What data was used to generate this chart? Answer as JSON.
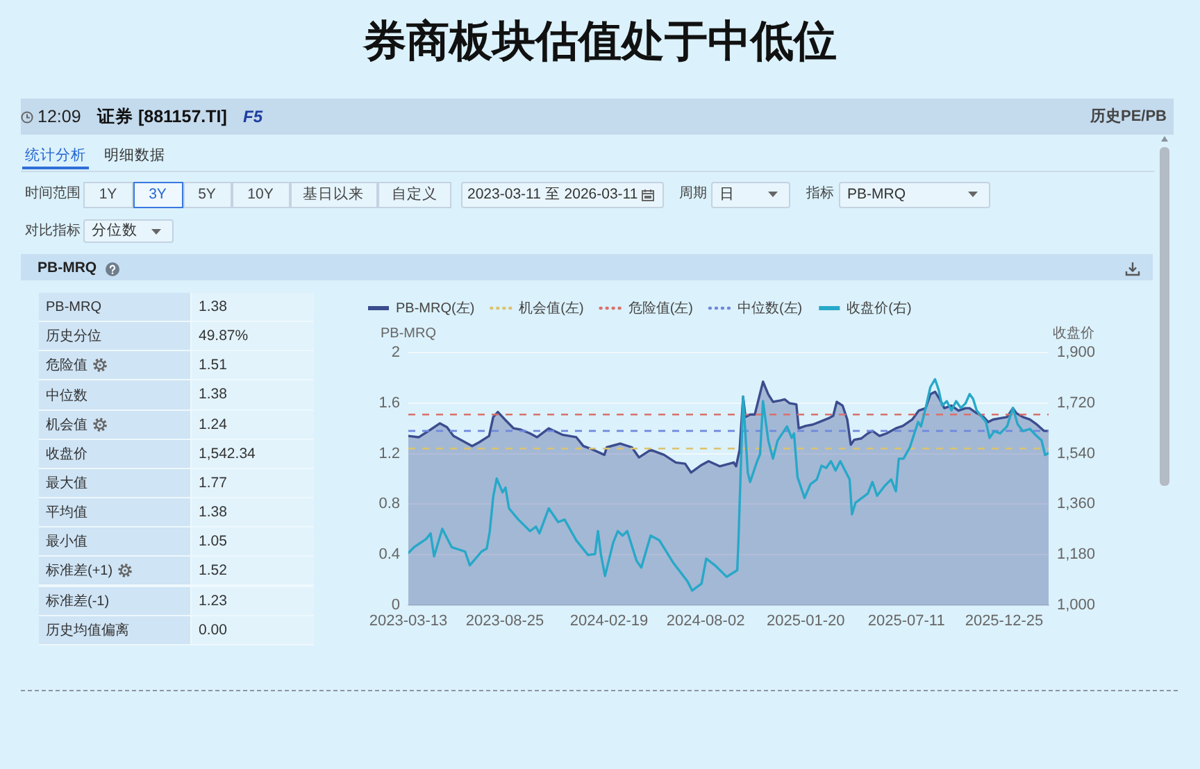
{
  "chart_data": [
    {
      "type": "other",
      "title": "券商板块估值处于中低位",
      "annotations": [
        "12:09",
        "证券 [881157.TI]",
        "F5",
        "历史PE/PB",
        "统计分析",
        "明细数据",
        "时间范围",
        "1Y",
        "3Y",
        "5Y",
        "10Y",
        "基日以来",
        "自定义",
        "2023-03-11 至 2026-03-11",
        "周期",
        "日",
        "指标",
        "PB-MRQ",
        "对比指标",
        "分位数",
        "PB-MRQ"
      ]
    },
    {
      "type": "other",
      "annotations": [
        "PB-MRQ",
        "1.38",
        "历史分位",
        "49.87%",
        "危险值",
        "1.51",
        "中位数",
        "1.38",
        "机会值",
        "1.24",
        "收盘价",
        "1,542.34",
        "最大值",
        "1.77",
        "平均值",
        "1.38",
        "最小值",
        "1.05",
        "标准差(+1)",
        "1.52",
        "标准差(-1)",
        "1.23",
        "历史均值偏离",
        "0.00"
      ]
    },
    {
      "type": "line",
      "ylabel": "PB-MRQ",
      "y2label": "收盘价",
      "xlim": [
        "2023-03-13",
        "2026-03-11"
      ],
      "xticks": [
        "2023-03-13",
        "2023-08-25",
        "2024-02-19",
        "2024-08-02",
        "2025-01-20",
        "2025-07-11",
        "2025-12-25"
      ],
      "ylim": [
        0,
        2
      ],
      "yticks": [
        0,
        0.4,
        0.8,
        1.2,
        1.6,
        2
      ],
      "y2lim": [
        1000,
        1900
      ],
      "y2ticks": [
        {
          "value": 1000,
          "label": "1,000"
        },
        {
          "value": 1180,
          "label": "1,180"
        },
        {
          "value": 1360,
          "label": "1,360"
        },
        {
          "value": 1540,
          "label": "1,540"
        },
        {
          "value": 1720,
          "label": "1,720"
        },
        {
          "value": 1900,
          "label": "1,900"
        }
      ],
      "grid": "y",
      "legend": "top left",
      "marker": "none",
      "series": [
        {
          "name": "PB-MRQ(左)",
          "type": "area",
          "color": "#3b4c8e",
          "x": [
            "2023-03-13",
            "2023-03-31",
            "2023-04-20",
            "2023-05-06",
            "2023-05-18",
            "2023-05-29",
            "2023-06-22",
            "2023-06-30",
            "2023-07-12",
            "2023-07-29",
            "2023-08-05",
            "2023-08-13",
            "2023-08-25",
            "2023-09-09",
            "2023-09-21",
            "2023-10-07",
            "2023-10-19",
            "2023-11-08",
            "2023-12-01",
            "2023-12-25",
            "2024-01-06",
            "2024-01-18",
            "2024-02-11",
            "2024-02-15",
            "2024-03-09",
            "2024-03-29",
            "2024-04-10",
            "2024-04-30",
            "2024-05-23",
            "2024-06-12",
            "2024-06-28",
            "2024-07-08",
            "2024-07-26",
            "2024-08-07",
            "2024-08-26",
            "2024-09-19",
            "2024-09-23",
            "2024-09-29",
            "2024-10-05",
            "2024-10-09",
            "2024-10-17",
            "2024-10-25",
            "2024-11-08",
            "2024-11-17",
            "2024-11-25",
            "2024-12-07",
            "2024-12-15",
            "2024-12-23",
            "2025-01-04",
            "2025-01-08",
            "2025-01-20",
            "2025-02-01",
            "2025-02-12",
            "2025-02-28",
            "2025-03-08",
            "2025-03-14",
            "2025-03-24",
            "2025-04-01",
            "2025-04-07",
            "2025-04-13",
            "2025-04-25",
            "2025-05-06",
            "2025-05-14",
            "2025-05-26",
            "2025-06-07",
            "2025-06-23",
            "2025-07-05",
            "2025-07-21",
            "2025-08-01",
            "2025-08-13",
            "2025-08-21",
            "2025-08-29",
            "2025-09-06",
            "2025-09-14",
            "2025-09-26",
            "2025-10-08",
            "2025-10-20",
            "2025-10-27",
            "2025-11-08",
            "2025-11-20",
            "2025-11-28",
            "2025-12-06",
            "2025-12-18",
            "2025-12-30",
            "2026-01-09",
            "2026-01-15",
            "2026-01-26",
            "2026-02-07",
            "2026-02-19",
            "2026-03-03",
            "2026-03-11"
          ],
          "values": [
            1.34,
            1.33,
            1.39,
            1.44,
            1.41,
            1.34,
            1.28,
            1.26,
            1.29,
            1.34,
            1.49,
            1.53,
            1.47,
            1.4,
            1.39,
            1.36,
            1.33,
            1.4,
            1.35,
            1.33,
            1.26,
            1.24,
            1.19,
            1.25,
            1.28,
            1.25,
            1.17,
            1.23,
            1.19,
            1.13,
            1.12,
            1.05,
            1.11,
            1.14,
            1.1,
            1.13,
            1.1,
            1.23,
            1.65,
            1.49,
            1.51,
            1.51,
            1.77,
            1.67,
            1.61,
            1.62,
            1.63,
            1.6,
            1.59,
            1.4,
            1.42,
            1.43,
            1.45,
            1.48,
            1.5,
            1.61,
            1.58,
            1.47,
            1.27,
            1.31,
            1.32,
            1.36,
            1.38,
            1.34,
            1.36,
            1.4,
            1.42,
            1.47,
            1.54,
            1.56,
            1.67,
            1.69,
            1.63,
            1.56,
            1.58,
            1.54,
            1.56,
            1.56,
            1.52,
            1.49,
            1.45,
            1.47,
            1.48,
            1.49,
            1.56,
            1.52,
            1.49,
            1.47,
            1.43,
            1.38,
            1.38
          ]
        },
        {
          "name": "收盘价(右)",
          "type": "line",
          "axis": "y2",
          "color": "#27a8c8",
          "x": [
            "2023-03-13",
            "2023-03-23",
            "2023-04-12",
            "2023-04-20",
            "2023-04-26",
            "2023-05-10",
            "2023-05-26",
            "2023-06-18",
            "2023-06-26",
            "2023-07-16",
            "2023-07-25",
            "2023-07-30",
            "2023-08-05",
            "2023-08-11",
            "2023-08-21",
            "2023-08-26",
            "2023-09-01",
            "2023-09-17",
            "2023-10-07",
            "2023-10-17",
            "2023-10-23",
            "2023-11-08",
            "2023-11-24",
            "2023-12-05",
            "2023-12-25",
            "2024-01-14",
            "2024-01-26",
            "2024-01-31",
            "2024-02-05",
            "2024-02-12",
            "2024-02-26",
            "2024-03-05",
            "2024-03-13",
            "2024-03-21",
            "2024-04-06",
            "2024-04-14",
            "2024-04-30",
            "2024-05-15",
            "2024-06-08",
            "2024-07-02",
            "2024-07-10",
            "2024-07-26",
            "2024-08-03",
            "2024-08-18",
            "2024-09-07",
            "2024-09-25",
            "2024-09-27",
            "2024-10-05",
            "2024-10-13",
            "2024-10-17",
            "2024-10-29",
            "2024-11-03",
            "2024-11-08",
            "2024-11-17",
            "2024-11-25",
            "2024-12-03",
            "2024-12-19",
            "2024-12-27",
            "2024-12-31",
            "2025-01-06",
            "2025-01-18",
            "2025-01-28",
            "2025-02-08",
            "2025-02-16",
            "2025-02-24",
            "2025-03-04",
            "2025-03-12",
            "2025-03-20",
            "2025-04-05",
            "2025-04-09",
            "2025-04-15",
            "2025-05-06",
            "2025-05-14",
            "2025-05-22",
            "2025-06-03",
            "2025-06-15",
            "2025-06-23",
            "2025-06-28",
            "2025-07-06",
            "2025-07-17",
            "2025-07-31",
            "2025-08-05",
            "2025-08-13",
            "2025-08-21",
            "2025-08-29",
            "2025-09-04",
            "2025-09-10",
            "2025-09-18",
            "2025-09-26",
            "2025-10-04",
            "2025-10-12",
            "2025-10-20",
            "2025-10-27",
            "2025-11-02",
            "2025-11-08",
            "2025-11-24",
            "2025-11-30",
            "2025-12-08",
            "2025-12-18",
            "2025-12-30",
            "2026-01-09",
            "2026-01-17",
            "2026-01-26",
            "2026-02-07",
            "2026-02-18",
            "2026-02-27",
            "2026-03-05",
            "2026-03-11"
          ],
          "values": [
            1186,
            1207,
            1235,
            1256,
            1174,
            1272,
            1207,
            1191,
            1142,
            1191,
            1202,
            1261,
            1386,
            1451,
            1402,
            1419,
            1345,
            1305,
            1264,
            1280,
            1256,
            1345,
            1296,
            1305,
            1231,
            1179,
            1182,
            1264,
            1182,
            1104,
            1223,
            1264,
            1248,
            1264,
            1158,
            1134,
            1248,
            1231,
            1150,
            1085,
            1052,
            1077,
            1166,
            1142,
            1101,
            1125,
            1225,
            1744,
            1472,
            1439,
            1513,
            1538,
            1727,
            1587,
            1522,
            1587,
            1637,
            1596,
            1612,
            1456,
            1382,
            1431,
            1448,
            1497,
            1489,
            1513,
            1480,
            1513,
            1448,
            1324,
            1365,
            1398,
            1439,
            1390,
            1423,
            1448,
            1406,
            1522,
            1522,
            1563,
            1653,
            1637,
            1703,
            1777,
            1805,
            1768,
            1711,
            1727,
            1694,
            1727,
            1703,
            1719,
            1752,
            1735,
            1694,
            1653,
            1596,
            1620,
            1612,
            1637,
            1703,
            1645,
            1620,
            1628,
            1604,
            1587,
            1535,
            1542
          ]
        }
      ],
      "ref_lines": [
        {
          "axis": "y",
          "value": 1.24,
          "label": "机会值(左)",
          "color": "#dcc36e",
          "line_style": "dashed"
        },
        {
          "axis": "y",
          "value": 1.51,
          "label": "危险值(左)",
          "color": "#d9716c",
          "line_style": "dashed"
        },
        {
          "axis": "y",
          "value": 1.38,
          "label": "中位数(左)",
          "color": "#6f88dd",
          "line_style": "dashed"
        }
      ]
    }
  ]
}
